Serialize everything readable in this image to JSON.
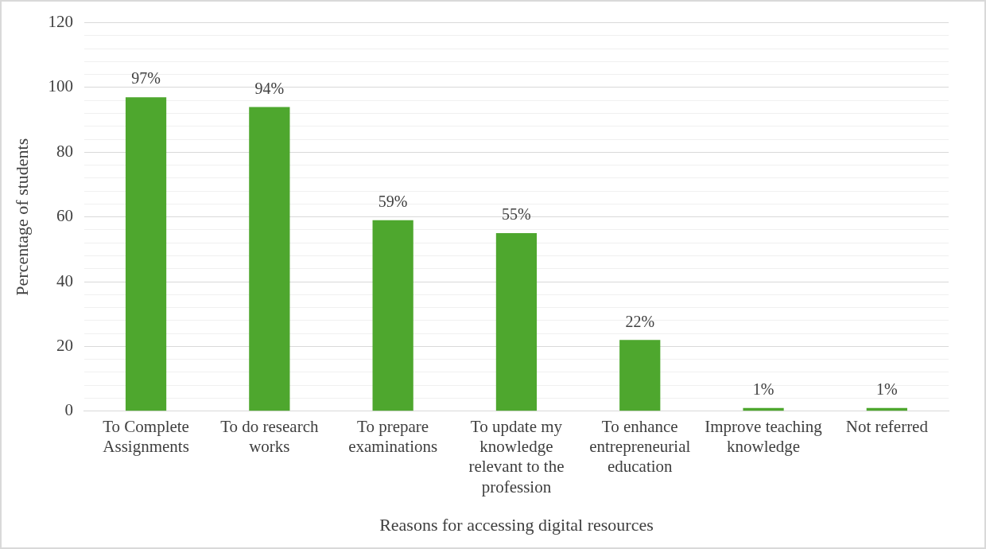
{
  "chart_data": {
    "type": "bar",
    "xlabel": "Reasons for accessing digital resources",
    "ylabel": "Percentage of students",
    "categories": [
      "To Complete Assignments",
      "To do research works",
      "To prepare examinations",
      "To update my knowledge relevant to the profession",
      "To enhance entrepreneurial education",
      "Improve teaching knowledge",
      "Not referred"
    ],
    "values": [
      97,
      94,
      59,
      55,
      22,
      1,
      1
    ],
    "value_labels": [
      "97%",
      "94%",
      "59%",
      "55%",
      "22%",
      "1%",
      "1%"
    ],
    "color": "#4ea72e",
    "ylim": [
      0,
      120
    ],
    "yticks": [
      0,
      {
        "value": 4,
        "label": null
      },
      {
        "value": 8,
        "label": null
      },
      {
        "value": 12,
        "label": null
      },
      {
        "value": 16,
        "label": null
      },
      20,
      {
        "value": 24,
        "label": null
      },
      {
        "value": 28,
        "label": null
      },
      {
        "value": 32,
        "label": null
      },
      {
        "value": 36,
        "label": null
      },
      40,
      {
        "value": 44,
        "label": null
      },
      {
        "value": 48,
        "label": null
      },
      {
        "value": 52,
        "label": null
      },
      {
        "value": 56,
        "label": null
      },
      60,
      {
        "value": 64,
        "label": null
      },
      {
        "value": 68,
        "label": null
      },
      {
        "value": 72,
        "label": null
      },
      {
        "value": 76,
        "label": null
      },
      80,
      {
        "value": 84,
        "label": null
      },
      {
        "value": 88,
        "label": null
      },
      {
        "value": 92,
        "label": null
      },
      {
        "value": 96,
        "label": null
      },
      100,
      {
        "value": 104,
        "label": null
      },
      {
        "value": 108,
        "label": null
      },
      {
        "value": 112,
        "label": null
      },
      {
        "value": 116,
        "label": null
      },
      120
    ],
    "grid": "y",
    "legend": false
  }
}
